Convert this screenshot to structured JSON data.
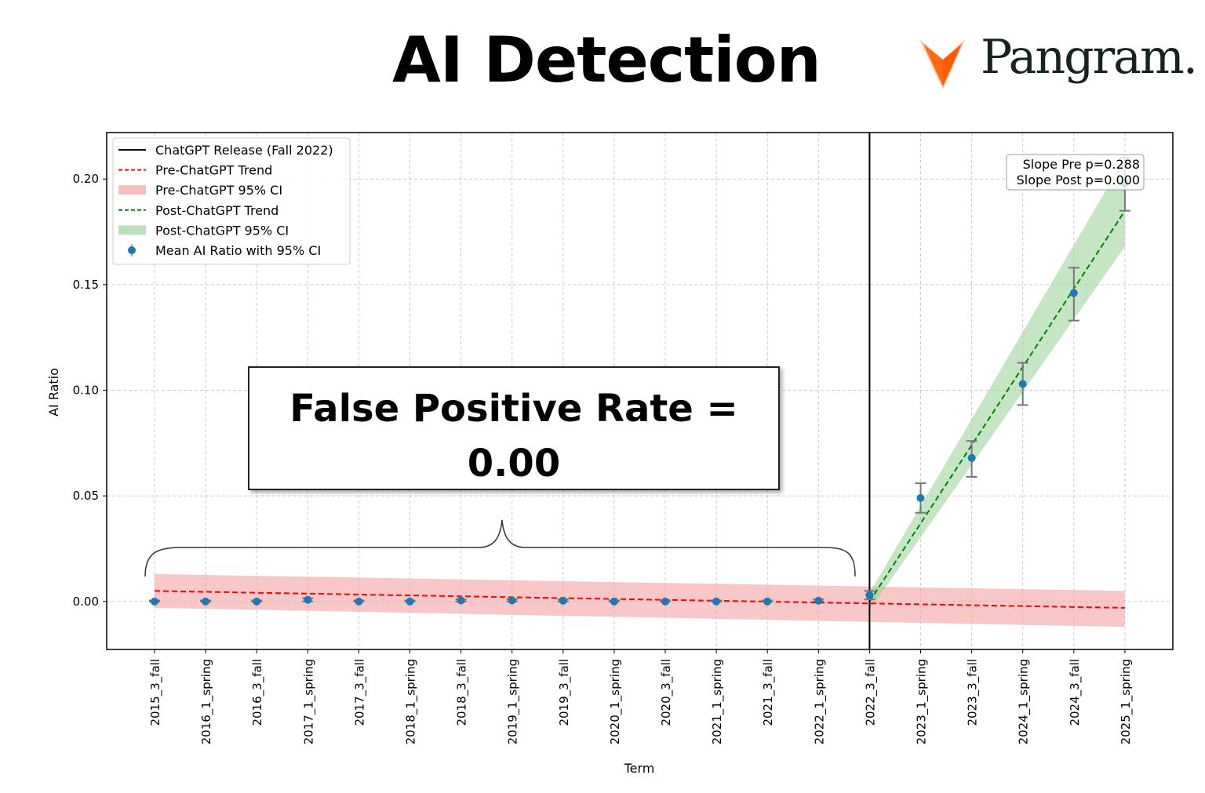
{
  "header": {
    "title": "AI Detection",
    "brand": "Pangram."
  },
  "annotation": {
    "line1": "False Positive Rate =",
    "line2": "0.00"
  },
  "stats_box": {
    "line1": "Slope Pre p=0.288",
    "line2": "Slope Post p=0.000"
  },
  "colors": {
    "pre": "#ff0000",
    "post": "#008000",
    "points": "#1f77b4",
    "pre_ci": "#f4a3a3",
    "post_ci": "#9fd39f",
    "logo": "#ff6a13"
  },
  "chart_data": {
    "type": "scatter",
    "title": "",
    "xlabel": "Term",
    "ylabel": "AI Ratio",
    "ylim": [
      -0.0227,
      0.222
    ],
    "yticks": [
      "0.00",
      "0.05",
      "0.10",
      "0.15",
      "0.20"
    ],
    "ytick_values": [
      0,
      0.05,
      0.1,
      0.15,
      0.2
    ],
    "grid": true,
    "legend_position": "top-left",
    "legend": [
      "ChatGPT Release (Fall 2022)",
      "Pre-ChatGPT Trend",
      "Pre-ChatGPT 95% CI",
      "Post-ChatGPT Trend",
      "Post-ChatGPT 95% CI",
      "Mean AI Ratio with 95% CI"
    ],
    "categories": [
      "2015_3_fall",
      "2016_1_spring",
      "2016_3_fall",
      "2017_1_spring",
      "2017_3_fall",
      "2018_1_spring",
      "2018_3_fall",
      "2019_1_spring",
      "2019_3_fall",
      "2020_1_spring",
      "2020_3_fall",
      "2021_1_spring",
      "2021_3_fall",
      "2022_1_spring",
      "2022_3_fall",
      "2023_1_spring",
      "2023_3_fall",
      "2024_1_spring",
      "2024_3_fall",
      "2025_1_spring"
    ],
    "mean": [
      0.0,
      0.0,
      0.0,
      0.0008,
      0.0,
      0.0,
      0.0005,
      0.0005,
      0.0004,
      0.0,
      0.0,
      0.0,
      0.0,
      0.0004,
      0.003,
      0.049,
      0.068,
      0.103,
      0.146,
      0.198
    ],
    "ci_low": [
      0,
      0,
      0,
      0,
      0,
      0,
      0,
      0,
      0,
      0,
      0,
      0,
      0,
      0,
      0.001,
      0.042,
      0.059,
      0.093,
      0.133,
      0.185
    ],
    "ci_high": [
      0.0005,
      0.0005,
      0.0005,
      0.0015,
      0.0005,
      0.0005,
      0.001,
      0.001,
      0.001,
      0.0005,
      0.0005,
      0.0005,
      0.0005,
      0.001,
      0.005,
      0.056,
      0.076,
      0.113,
      0.158,
      0.21
    ],
    "chatgpt_release_index": 14,
    "pre_trend": {
      "start_index": 0,
      "end_index": 19,
      "start": 0.005,
      "end": -0.003,
      "ci_start": [
        -0.003,
        0.013
      ],
      "ci_end": [
        -0.012,
        0.005
      ]
    },
    "post_trend": {
      "start_index": 14,
      "end_index": 19,
      "start": 0.0,
      "end": 0.185,
      "ci_start": [
        -0.004,
        0.004
      ],
      "ci_end": [
        0.168,
        0.21
      ]
    }
  }
}
